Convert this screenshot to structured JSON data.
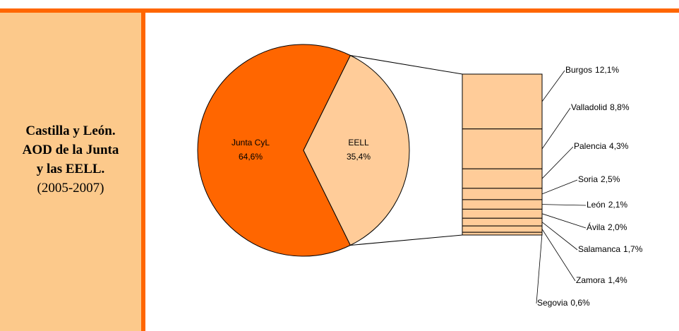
{
  "chart_data": {
    "type": "pie",
    "title": "Castilla y León. AOD de la Junta y las EELL.",
    "subtitle": "(2005-2007)",
    "categories": [
      "Junta CyL",
      "EELL"
    ],
    "values": [
      64.6,
      35.4
    ],
    "value_labels": [
      "64,6%",
      "35,4%"
    ],
    "colors": [
      "#ff6600",
      "#ffcc99"
    ],
    "breakdown": {
      "categories": [
        "Burgos",
        "Valladolid",
        "Palencia",
        "Soria",
        "León",
        "Ávila",
        "Salamanca",
        "Zamora",
        "Segovia"
      ],
      "values": [
        12.1,
        8.8,
        4.3,
        2.5,
        2.1,
        2.0,
        1.7,
        1.4,
        0.6
      ],
      "value_labels": [
        "12,1%",
        "8,8%",
        "4,3%",
        "2,5%",
        "2,1%",
        "2,0%",
        "1,7%",
        "1,4%",
        "0,6%"
      ],
      "color": "#ffcc99"
    }
  }
}
